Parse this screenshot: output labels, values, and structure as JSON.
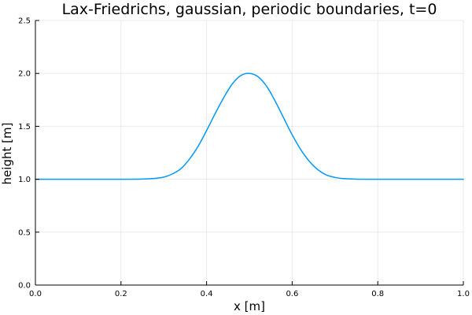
{
  "chart_data": {
    "type": "line",
    "title": "Lax-Friedrichs, gaussian, periodic boundaries, t=0",
    "xlabel": "x [m]",
    "ylabel": "height [m]",
    "xlim": [
      0,
      1
    ],
    "ylim": [
      0,
      2.5
    ],
    "xticks": [
      0,
      0.2,
      0.4,
      0.6,
      0.8,
      1.0
    ],
    "xtick_labels": [
      "0.0",
      "0.2",
      "0.4",
      "0.6",
      "0.8",
      "1.0"
    ],
    "yticks": [
      0,
      0.5,
      1.0,
      1.5,
      2.0,
      2.5
    ],
    "ytick_labels": [
      "0.0",
      "0.5",
      "1.0",
      "1.5",
      "2.0",
      "2.5"
    ],
    "grid": true,
    "legend": false,
    "series": [
      {
        "color": "#009AFA",
        "x": [
          0,
          0.05,
          0.1,
          0.15,
          0.2,
          0.25,
          0.28,
          0.3,
          0.32,
          0.34,
          0.36,
          0.38,
          0.4,
          0.42,
          0.44,
          0.46,
          0.48,
          0.5,
          0.52,
          0.54,
          0.56,
          0.58,
          0.6,
          0.62,
          0.64,
          0.66,
          0.68,
          0.7,
          0.72,
          0.75,
          0.8,
          0.85,
          0.9,
          0.95,
          1.0
        ],
        "y": [
          1.0,
          1.0,
          1.0,
          1.0,
          1.0,
          1.002,
          1.008,
          1.02,
          1.05,
          1.1,
          1.19,
          1.31,
          1.46,
          1.62,
          1.77,
          1.9,
          1.98,
          2.0,
          1.97,
          1.88,
          1.74,
          1.58,
          1.42,
          1.28,
          1.17,
          1.09,
          1.04,
          1.017,
          1.006,
          1.001,
          1.0,
          1.0,
          1.0,
          1.0,
          1.0
        ]
      }
    ]
  }
}
